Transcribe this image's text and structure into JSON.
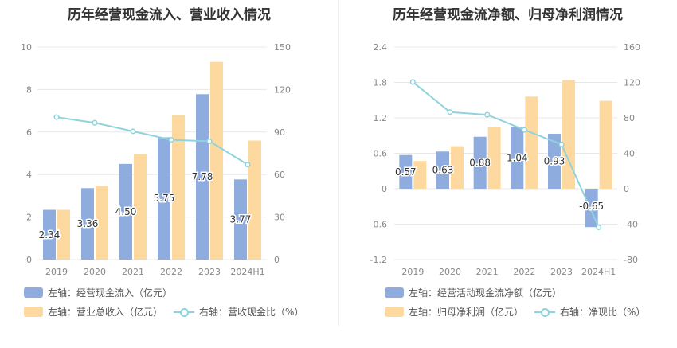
{
  "colors": {
    "bar1": "#8eadde",
    "bar2": "#fdd9a0",
    "line": "#8fd3dc",
    "grid": "#e8e8e8",
    "axis_text": "#888888"
  },
  "chart_data": [
    {
      "type": "bar",
      "title": "历年经营现金流入、营业收入情况",
      "categories": [
        "2019",
        "2020",
        "2021",
        "2022",
        "2023",
        "2024H1"
      ],
      "left_axis": {
        "ylim": [
          0,
          10
        ],
        "ticks": [
          "0",
          "2",
          "4",
          "6",
          "8",
          "10"
        ]
      },
      "right_axis": {
        "ylim": [
          0,
          150
        ],
        "ticks": [
          "0",
          "30",
          "60",
          "90",
          "120",
          "150"
        ]
      },
      "series": [
        {
          "name": "左轴：经营现金流入（亿元）",
          "axis": "left",
          "kind": "bar",
          "values": [
            2.34,
            3.36,
            4.5,
            5.75,
            7.78,
            3.77
          ],
          "labels": [
            "2.34",
            "3.36",
            "4.50",
            "5.75",
            "7.78",
            "3.77"
          ]
        },
        {
          "name": "左轴：营业总收入（亿元）",
          "axis": "left",
          "kind": "bar",
          "values": [
            2.34,
            3.45,
            4.95,
            6.8,
            9.3,
            5.6
          ]
        },
        {
          "name": "右轴：营收现金比（%）",
          "axis": "right",
          "kind": "line",
          "values": [
            100.5,
            96.5,
            90.5,
            84.5,
            83.5,
            67.0
          ]
        }
      ]
    },
    {
      "type": "bar",
      "title": "历年经营现金流净额、归母净利润情况",
      "categories": [
        "2019",
        "2020",
        "2021",
        "2022",
        "2023",
        "2024H1"
      ],
      "left_axis": {
        "ylim": [
          -1.2,
          2.4
        ],
        "ticks": [
          "-1.2",
          "-0.6",
          "0",
          "0.6",
          "1.2",
          "1.8",
          "2.4"
        ]
      },
      "right_axis": {
        "ylim": [
          -80,
          160
        ],
        "ticks": [
          "-80",
          "-40",
          "0",
          "40",
          "80",
          "120",
          "160"
        ]
      },
      "series": [
        {
          "name": "左轴：经营活动现金流净额（亿元）",
          "axis": "left",
          "kind": "bar",
          "values": [
            0.57,
            0.63,
            0.88,
            1.04,
            0.93,
            -0.65
          ],
          "labels": [
            "0.57",
            "0.63",
            "0.88",
            "1.04",
            "0.93",
            "-0.65"
          ]
        },
        {
          "name": "左轴：归母净利润（亿元）",
          "axis": "left",
          "kind": "bar",
          "values": [
            0.47,
            0.72,
            1.05,
            1.56,
            1.84,
            1.49
          ]
        },
        {
          "name": "右轴：净现比（%）",
          "axis": "right",
          "kind": "line",
          "values": [
            120.5,
            86.5,
            83.5,
            66.5,
            50.0,
            -43.5
          ]
        }
      ]
    }
  ]
}
